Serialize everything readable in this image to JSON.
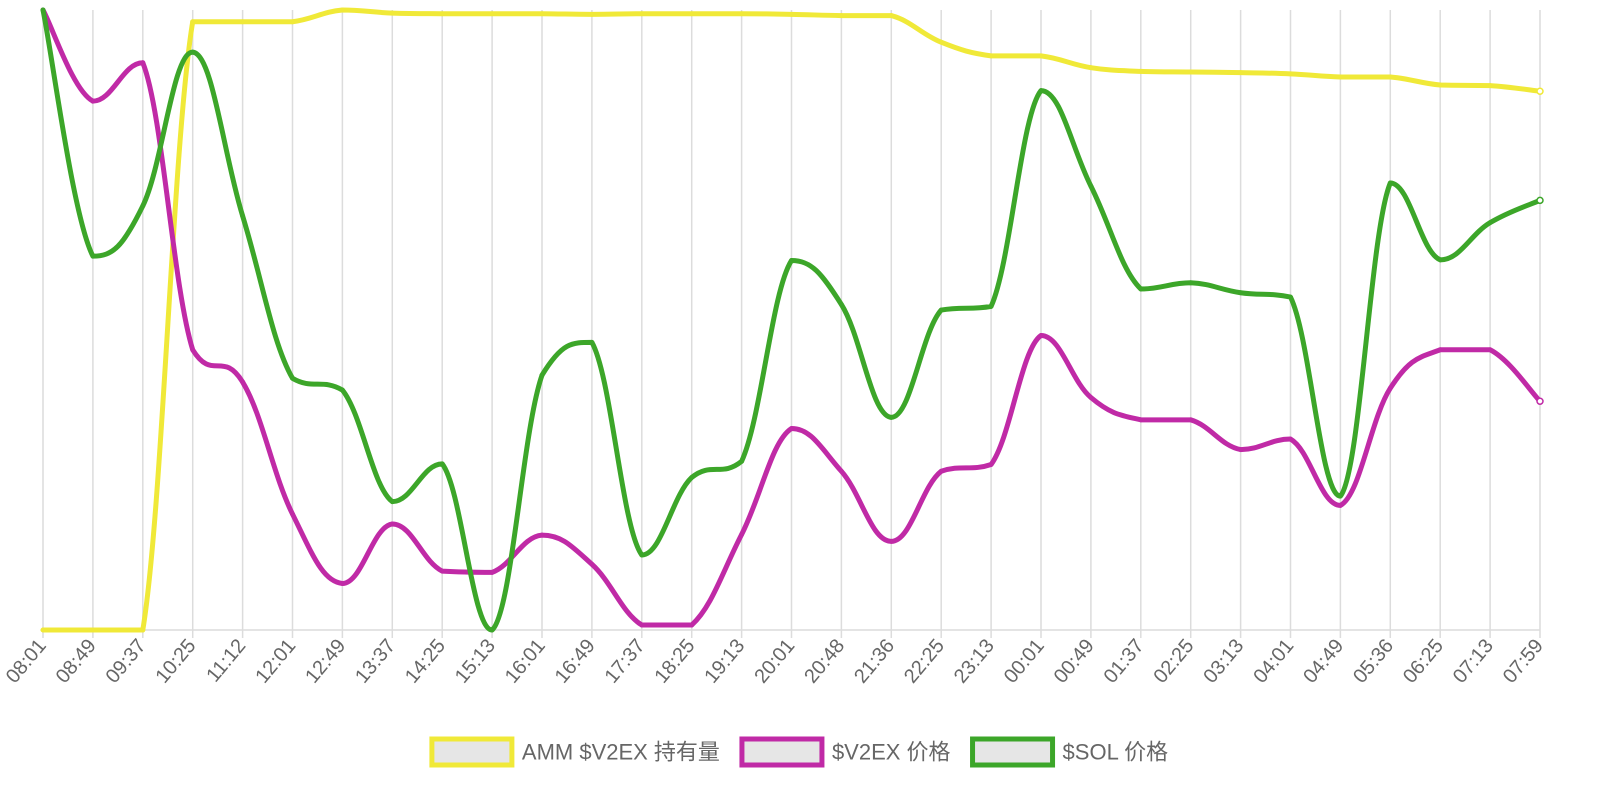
{
  "chart_data": {
    "type": "line",
    "x": [
      "08:01",
      "08:49",
      "09:37",
      "10:25",
      "11:12",
      "12:01",
      "12:49",
      "13:37",
      "14:25",
      "15:13",
      "16:01",
      "16:49",
      "17:37",
      "18:25",
      "19:13",
      "20:01",
      "20:48",
      "21:36",
      "22:25",
      "23:13",
      "00:01",
      "00:49",
      "01:37",
      "02:25",
      "03:13",
      "04:01",
      "04:49",
      "05:36",
      "06:25",
      "07:13",
      "07:59"
    ],
    "y_axis_labels": "hidden",
    "grid": {
      "vertical": true,
      "horizontal": false
    },
    "legend_position": "bottom",
    "series": [
      {
        "name": "AMM $V2EX 持有量",
        "color": "#f0e938",
        "axis_range": [
          0,
          100
        ],
        "values": [
          0.0,
          0.0,
          0.0,
          98.1,
          98.1,
          98.1,
          100.0,
          99.5,
          99.4,
          99.4,
          99.4,
          99.3,
          99.4,
          99.4,
          99.4,
          99.3,
          99.1,
          99.1,
          94.8,
          92.6,
          92.6,
          90.7,
          90.1,
          90.0,
          89.9,
          89.7,
          89.2,
          89.2,
          87.9,
          87.8,
          86.9
        ]
      },
      {
        "name": "$V2EX 价格",
        "color": "#c02aa6",
        "axis_range": [
          0,
          100
        ],
        "values": [
          100.0,
          85.3,
          91.5,
          45.2,
          40.0,
          18.7,
          7.5,
          17.1,
          9.5,
          9.3,
          15.3,
          10.6,
          0.8,
          0.8,
          15.4,
          32.5,
          25.6,
          14.3,
          25.6,
          26.7,
          47.5,
          37.5,
          33.9,
          33.9,
          29.1,
          30.8,
          20.1,
          39.0,
          45.2,
          45.2,
          36.9
        ]
      },
      {
        "name": "$SOL 价格",
        "color": "#3ca629",
        "axis_range": [
          0,
          100
        ],
        "values": [
          100.0,
          60.3,
          68.4,
          93.2,
          66.8,
          40.6,
          38.7,
          20.7,
          26.8,
          0.0,
          41.1,
          46.4,
          12.1,
          24.6,
          27.2,
          59.6,
          52.5,
          34.3,
          51.6,
          52.2,
          87.0,
          71.6,
          55.0,
          56.0,
          54.4,
          53.7,
          21.6,
          72.1,
          59.7,
          65.7,
          69.3
        ]
      }
    ]
  }
}
